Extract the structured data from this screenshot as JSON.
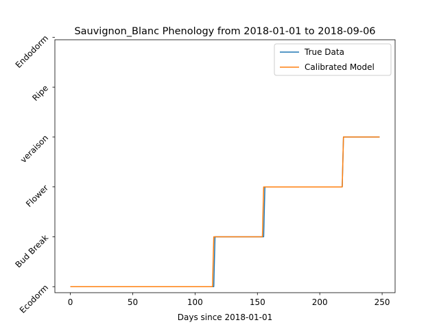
{
  "chart_data": {
    "type": "line",
    "title": "Sauvignon_Blanc Phenology from 2018-01-01 to 2018-09-06",
    "xlabel": "Days since 2018-01-01",
    "ylabel": "",
    "xlim": [
      -12.4,
      260.4
    ],
    "ylim": [
      -0.12,
      4.95
    ],
    "xticks": [
      0,
      50,
      100,
      150,
      200,
      250
    ],
    "yticks": [
      0,
      1,
      2,
      3,
      4,
      5
    ],
    "ytick_labels": [
      "Ecodorm",
      "Bud Break",
      "Flower",
      "veraison",
      "Ripe",
      "Endodorm"
    ],
    "grid": false,
    "legend_position": "top-right",
    "series": [
      {
        "name": "True Data",
        "color": "#1f77b4",
        "x": [
          0,
          115,
          116,
          155,
          156,
          218,
          219,
          248
        ],
        "y": [
          0,
          0,
          1,
          1,
          2,
          2,
          3,
          3
        ]
      },
      {
        "name": "Calibrated Model",
        "color": "#ff7f0e",
        "x": [
          0,
          114,
          115,
          154,
          155,
          218,
          219,
          248
        ],
        "y": [
          0,
          0,
          1,
          1,
          2,
          2,
          3,
          3
        ]
      }
    ]
  }
}
